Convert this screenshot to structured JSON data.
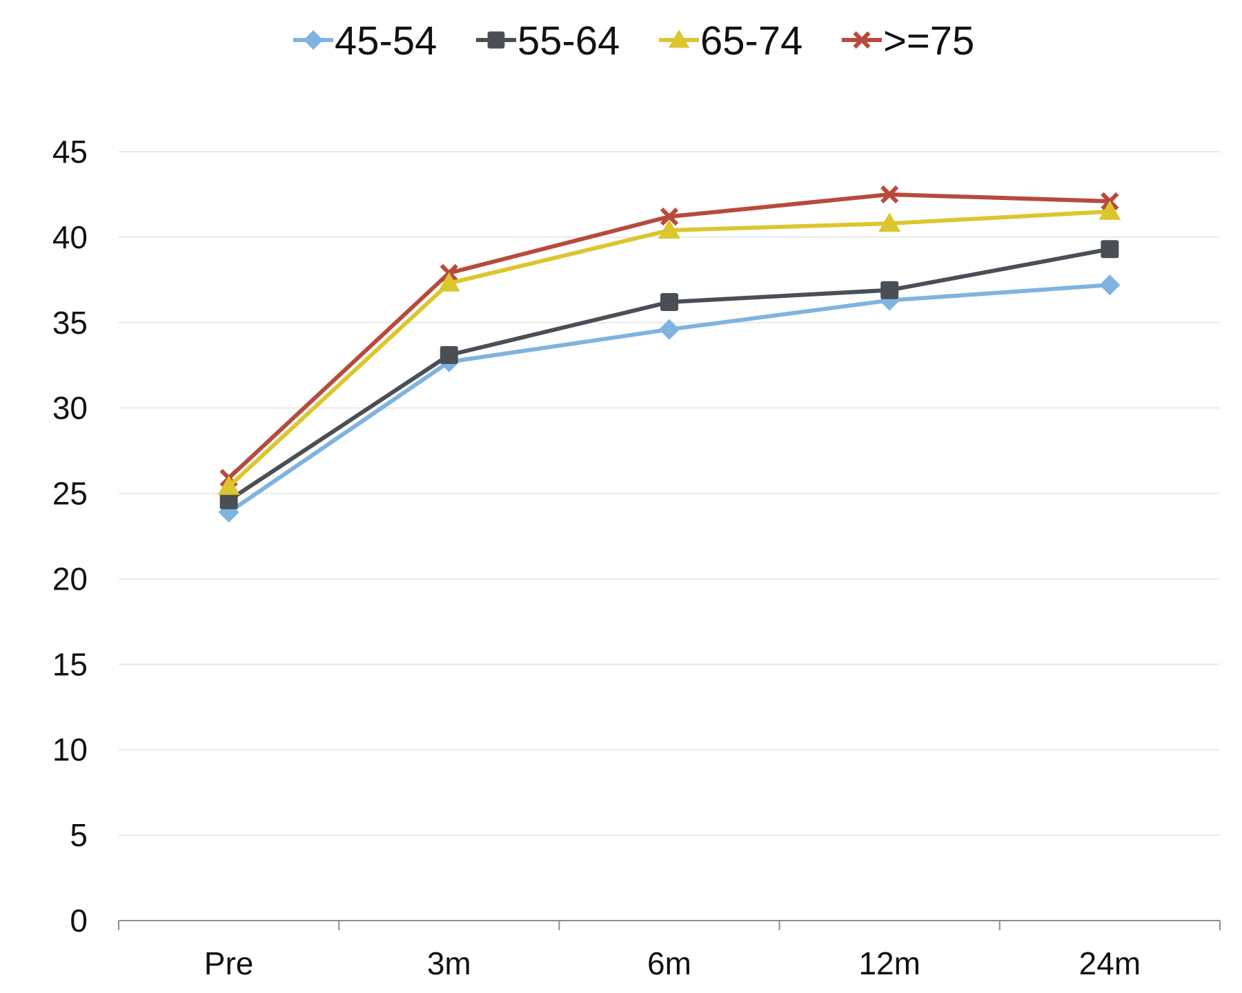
{
  "chart_data": {
    "type": "line",
    "categories": [
      "Pre",
      "3m",
      "6m",
      "12m",
      "24m"
    ],
    "ylim": [
      0,
      45
    ],
    "yticks": [
      "0",
      "5",
      "10",
      "15",
      "20",
      "25",
      "30",
      "35",
      "40",
      "45"
    ],
    "grid": true,
    "legend_position": "top-center",
    "series": [
      {
        "name": "45-54",
        "marker": "diamond",
        "color": "#7fb3e0",
        "values": [
          23.9,
          32.7,
          34.6,
          36.3,
          37.2
        ]
      },
      {
        "name": "55-64",
        "marker": "square",
        "color": "#4a4e55",
        "values": [
          24.6,
          33.1,
          36.2,
          36.9,
          39.3
        ]
      },
      {
        "name": ">=75",
        "marker": "x",
        "color": "#b84a3c",
        "values": [
          25.9,
          37.9,
          41.2,
          42.5,
          42.1
        ]
      },
      {
        "name": "65-74",
        "marker": "triangle",
        "color": "#dcc62e",
        "values": [
          25.4,
          37.3,
          40.4,
          40.8,
          41.5
        ]
      }
    ],
    "legend_order": [
      "45-54",
      "55-64",
      "65-74",
      ">=75"
    ]
  }
}
